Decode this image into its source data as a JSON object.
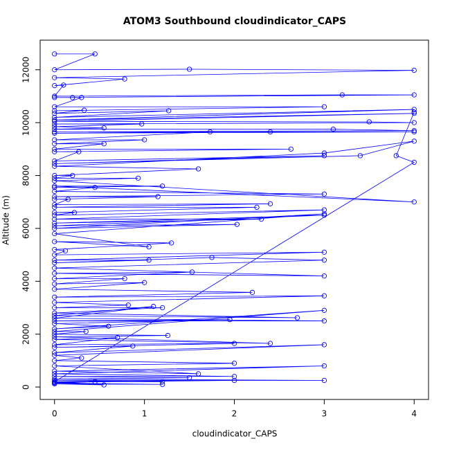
{
  "chart_data": {
    "type": "line",
    "title": "ATOM3 Southbound cloudindicator_CAPS",
    "xlabel": "cloudindicator_CAPS",
    "ylabel": "Altitude (m)",
    "color": "#0000ff",
    "marker": "circle",
    "xlim": [
      -0.16,
      4.16
    ],
    "ylim": [
      -470,
      13120
    ],
    "xticks": [
      0,
      1,
      2,
      3,
      4
    ],
    "yticks": [
      0,
      2000,
      4000,
      6000,
      8000,
      10000,
      12000
    ],
    "x": [
      0,
      0.45,
      0,
      1.5,
      4,
      0,
      0.78,
      0,
      0.1,
      0,
      3.2,
      4,
      0,
      0.2,
      0.3,
      0,
      3,
      0,
      0.33,
      0,
      1.27,
      0,
      4,
      0,
      4,
      0,
      3.5,
      4,
      0,
      0.97,
      0,
      0.55,
      0,
      3.1,
      4,
      0,
      2.4,
      4,
      0,
      1.73,
      0,
      1,
      0,
      0.55,
      0,
      2.63,
      0,
      0.27,
      0,
      3,
      0,
      3.4,
      4,
      3,
      0,
      1.6,
      0,
      0.2,
      0,
      0.93,
      0,
      4,
      0,
      1.2,
      0,
      0.45,
      0,
      3,
      0,
      1.15,
      0,
      0.15,
      0,
      2.4,
      0,
      2.25,
      0,
      0.22,
      0,
      3,
      0,
      2.3,
      0,
      3,
      0,
      2.03,
      0,
      3,
      0,
      1.05,
      0,
      1.3,
      0,
      0.12,
      0,
      3,
      0,
      1.05,
      0,
      1.75,
      3,
      0,
      3,
      0,
      1.53,
      0,
      0.78,
      0,
      1,
      0,
      2.2,
      0,
      3,
      0,
      0.82,
      0,
      1.2,
      0,
      2.7,
      0,
      1.1,
      0,
      3,
      0,
      1.95,
      0,
      0.6,
      0,
      3,
      0,
      0.35,
      0,
      1.26,
      0,
      2.4,
      0,
      0.7,
      0,
      2,
      0,
      0.87,
      0,
      3,
      0,
      0.3,
      0,
      2.0,
      0,
      1.6,
      0,
      3,
      0,
      2,
      0,
      1.5,
      0,
      3,
      0,
      1.2,
      0,
      2,
      0,
      0.45,
      0,
      1.2,
      0,
      0.55,
      0,
      4,
      3.8,
      4
    ],
    "y": [
      12600,
      12600,
      12000,
      12020,
      11980,
      11700,
      11650,
      11400,
      11420,
      11000,
      11050,
      11050,
      10950,
      10950,
      10950,
      10600,
      10600,
      10450,
      10470,
      10350,
      10450,
      10200,
      10500,
      10100,
      10350,
      10050,
      10030,
      10000,
      9950,
      9950,
      9850,
      9800,
      9750,
      9750,
      9700,
      9650,
      9650,
      9650,
      9600,
      9650,
      9350,
      9350,
      9200,
      9200,
      9000,
      9000,
      8900,
      8900,
      8550,
      8750,
      8450,
      8750,
      9300,
      8850,
      8350,
      8250,
      8000,
      8000,
      7900,
      7900,
      7800,
      7000,
      7600,
      7600,
      7550,
      7550,
      7400,
      7300,
      7200,
      7200,
      7100,
      7100,
      6900,
      6930,
      6800,
      6800,
      6600,
      6600,
      6500,
      6700,
      6350,
      6350,
      6200,
      6500,
      6100,
      6150,
      6000,
      6550,
      5800,
      5300,
      5500,
      5450,
      5200,
      5150,
      5000,
      5100,
      4800,
      4800,
      4700,
      4900,
      4800,
      4500,
      4200,
      4300,
      4350,
      4100,
      4100,
      3900,
      3950,
      3700,
      3580,
      3400,
      3450,
      3200,
      3100,
      3000,
      3000,
      2800,
      2620,
      2700,
      3050,
      2600,
      2500,
      2500,
      2550,
      2400,
      2300,
      2200,
      2900,
      2100,
      2100,
      2000,
      1950,
      1900,
      1650,
      1800,
      1870,
      1600,
      1650,
      1500,
      1550,
      1300,
      1600,
      1200,
      1100,
      1000,
      900,
      800,
      500,
      600,
      800,
      500,
      400,
      400,
      350,
      300,
      250,
      250,
      200,
      200,
      250,
      180,
      200,
      150,
      100,
      120,
      80,
      200,
      8500,
      8750,
      10400
    ]
  }
}
